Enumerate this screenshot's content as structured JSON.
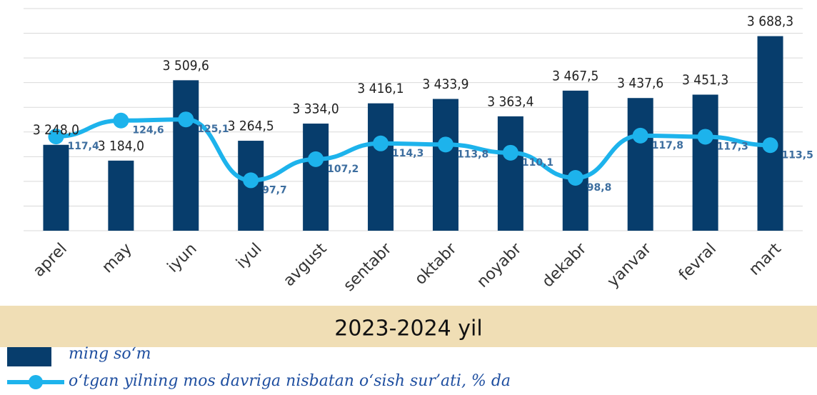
{
  "chart_data": {
    "type": "bar-line",
    "xlabel": "2023-2024 yil",
    "categories": [
      "aprel",
      "may",
      "iyun",
      "iyul",
      "avgust",
      "sentabr",
      "oktabr",
      "noyabr",
      "dekabr",
      "yanvar",
      "fevral",
      "mart"
    ],
    "series": [
      {
        "name": "ming so‘m",
        "type": "bar",
        "color": "#073d6c",
        "values": [
          3248.0,
          3184.0,
          3509.6,
          3264.5,
          3334.0,
          3416.1,
          3433.9,
          3363.4,
          3467.5,
          3437.6,
          3451.3,
          3688.3
        ],
        "value_labels": [
          "3 248,0",
          "3 184,0",
          "3 509,6",
          "3 264,5",
          "3 334,0",
          "3 416,1",
          "3 433,9",
          "3 363,4",
          "3 467,5",
          "3 437,6",
          "3 451,3",
          "3 688,3"
        ]
      },
      {
        "name": "o‘tgan yilning mos davriga nisbatan o‘sish sur’ati, % da",
        "type": "line",
        "axis": "y2",
        "color": "#1db3ec",
        "values": [
          117.4,
          124.6,
          125.1,
          97.7,
          107.2,
          114.3,
          113.8,
          110.1,
          98.8,
          117.8,
          117.3,
          113.5
        ],
        "value_labels": [
          "117,4",
          "124,6",
          "125,1",
          "97,7",
          "107,2",
          "114,3",
          "113,8",
          "110,1",
          "98,8",
          "117,8",
          "117,3",
          "113,5"
        ]
      }
    ],
    "ylim": [
      2900,
      3800
    ],
    "yticks": [
      2900,
      3000,
      3100,
      3200,
      3300,
      3400,
      3500,
      3600,
      3700,
      3800
    ],
    "y2lim": [
      75,
      175
    ],
    "grid": true
  }
}
